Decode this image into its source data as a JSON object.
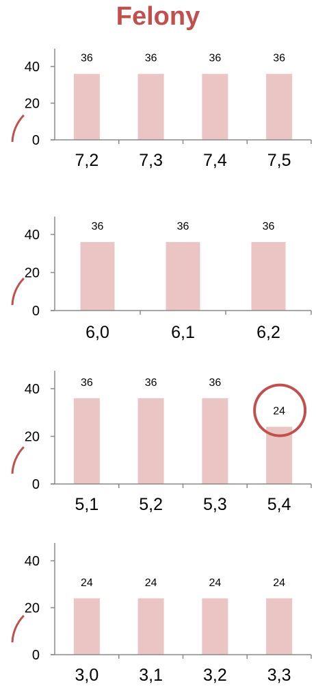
{
  "title": "Felony",
  "colors": {
    "bar": "#ebc5c4",
    "title": "#c0504d",
    "highlight": "#c0504d",
    "axis": "#888888",
    "text": "#000000"
  },
  "chart_data": [
    {
      "type": "bar",
      "categories": [
        "7,2",
        "7,3",
        "7,4",
        "7,5"
      ],
      "values": [
        36,
        36,
        36,
        36
      ],
      "data_labels": [
        "36",
        "36",
        "36",
        "36"
      ],
      "yticks": [
        "0",
        "20",
        "40"
      ],
      "ylim": [
        0,
        40
      ],
      "grid": false,
      "legend": "none"
    },
    {
      "type": "bar",
      "categories": [
        "6,0",
        "6,1",
        "6,2"
      ],
      "values": [
        36,
        36,
        36
      ],
      "data_labels": [
        "36",
        "36",
        "36"
      ],
      "yticks": [
        "0",
        "20",
        "40"
      ],
      "ylim": [
        0,
        40
      ],
      "grid": false,
      "legend": "none"
    },
    {
      "type": "bar",
      "categories": [
        "5,1",
        "5,2",
        "5,3",
        "5,4"
      ],
      "values": [
        36,
        36,
        36,
        24
      ],
      "data_labels": [
        "36",
        "36",
        "36",
        "24"
      ],
      "highlighted_category": "5,4",
      "yticks": [
        "0",
        "20",
        "40"
      ],
      "ylim": [
        0,
        40
      ],
      "grid": false,
      "legend": "none"
    },
    {
      "type": "bar",
      "categories": [
        "3,0",
        "3,1",
        "3,2",
        "3,3"
      ],
      "values": [
        24,
        24,
        24,
        24
      ],
      "data_labels": [
        "24",
        "24",
        "24",
        "24"
      ],
      "yticks": [
        "0",
        "20",
        "40"
      ],
      "ylim": [
        0,
        40
      ],
      "grid": false,
      "legend": "none"
    }
  ]
}
